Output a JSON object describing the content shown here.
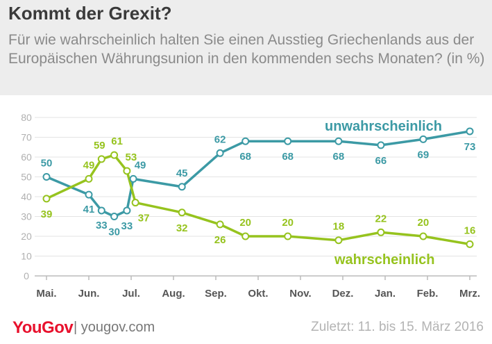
{
  "header": {
    "title": "Kommt der Grexit?",
    "subtitle": "Für wie wahrscheinlich halten Sie einen Ausstieg Griechenlands aus der Europäischen Währungsunion in den kommenden sechs Monaten? (in %)"
  },
  "footer": {
    "logo": "YouGov",
    "site": "| yougov.com",
    "date": "Zuletzt: 11. bis 15. März 2016"
  },
  "colors": {
    "unwahrscheinlich": "#3c9aa5",
    "wahrscheinlich": "#96c31e",
    "axis": "#bbbbbb",
    "grid": "#e3e3e3",
    "ticks": "#b0b0b0",
    "months": "#555555"
  },
  "chart_data": {
    "type": "line",
    "categories": [
      "Mai.",
      "Jun.",
      "Jul.",
      "Aug.",
      "Sep.",
      "Okt.",
      "Nov.",
      "Dez.",
      "Jan.",
      "Feb.",
      "Mrz."
    ],
    "ylim": [
      0,
      80
    ],
    "yticks": [
      0,
      10,
      20,
      30,
      40,
      50,
      60,
      70,
      80
    ],
    "grid": true,
    "series": [
      {
        "name": "unwahrscheinlich",
        "x": [
          0,
          1,
          1.3,
          1.6,
          1.9,
          2.05,
          3.2,
          4.1,
          4.7,
          5.7,
          6.9,
          7.9,
          8.9,
          10.0
        ],
        "values": [
          50,
          41,
          33,
          30,
          33,
          49,
          45,
          62,
          68,
          68,
          68,
          66,
          69,
          73
        ]
      },
      {
        "name": "wahrscheinlich",
        "x": [
          0,
          1,
          1.3,
          1.6,
          1.9,
          2.1,
          3.2,
          4.1,
          4.7,
          5.7,
          6.9,
          7.9,
          8.9,
          10.0
        ],
        "values": [
          39,
          49,
          59,
          61,
          53,
          37,
          32,
          26,
          20,
          20,
          18,
          22,
          20,
          16
        ]
      }
    ]
  }
}
